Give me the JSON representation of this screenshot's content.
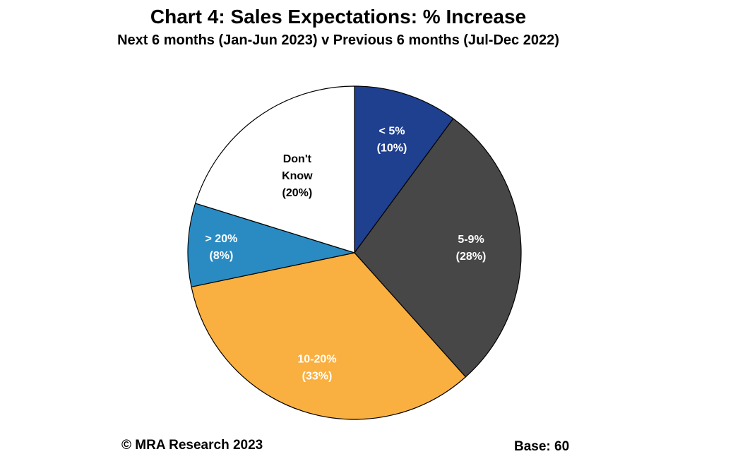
{
  "header": {
    "title": "Chart 4: Sales Expectations: % Increase",
    "subtitle": "Next 6 months (Jan-Jun 2023) v Previous 6 months (Jul-Dec 2022)"
  },
  "footer": {
    "copyright": "© MRA Research 2023",
    "base": "Base: 60"
  },
  "chart_data": {
    "type": "pie",
    "title": "Chart 4: Sales Expectations: % Increase",
    "subtitle": "Next 6 months (Jan-Jun 2023) v Previous 6 months (Jul-Dec 2022)",
    "start": "12 o'clock",
    "direction": "clockwise",
    "slices": [
      {
        "label": "< 5%",
        "value_label": "(10%)",
        "value": 10,
        "color": "#1f3f8f",
        "text_color": "#ffffff"
      },
      {
        "label": "5-9%",
        "value_label": "(28%)",
        "value": 28,
        "color": "#474747",
        "text_color": "#ffffff"
      },
      {
        "label": "10-20%",
        "value_label": "(33%)",
        "value": 33,
        "color": "#f9b040",
        "text_color": "#ffffff"
      },
      {
        "label": "> 20%",
        "value_label": "(8%)",
        "value": 8,
        "color": "#2a8bc2",
        "text_color": "#ffffff"
      },
      {
        "label": "Don't Know",
        "value_label": "(20%)",
        "value": 20,
        "color": "#ffffff",
        "text_color": "#000000"
      }
    ]
  }
}
